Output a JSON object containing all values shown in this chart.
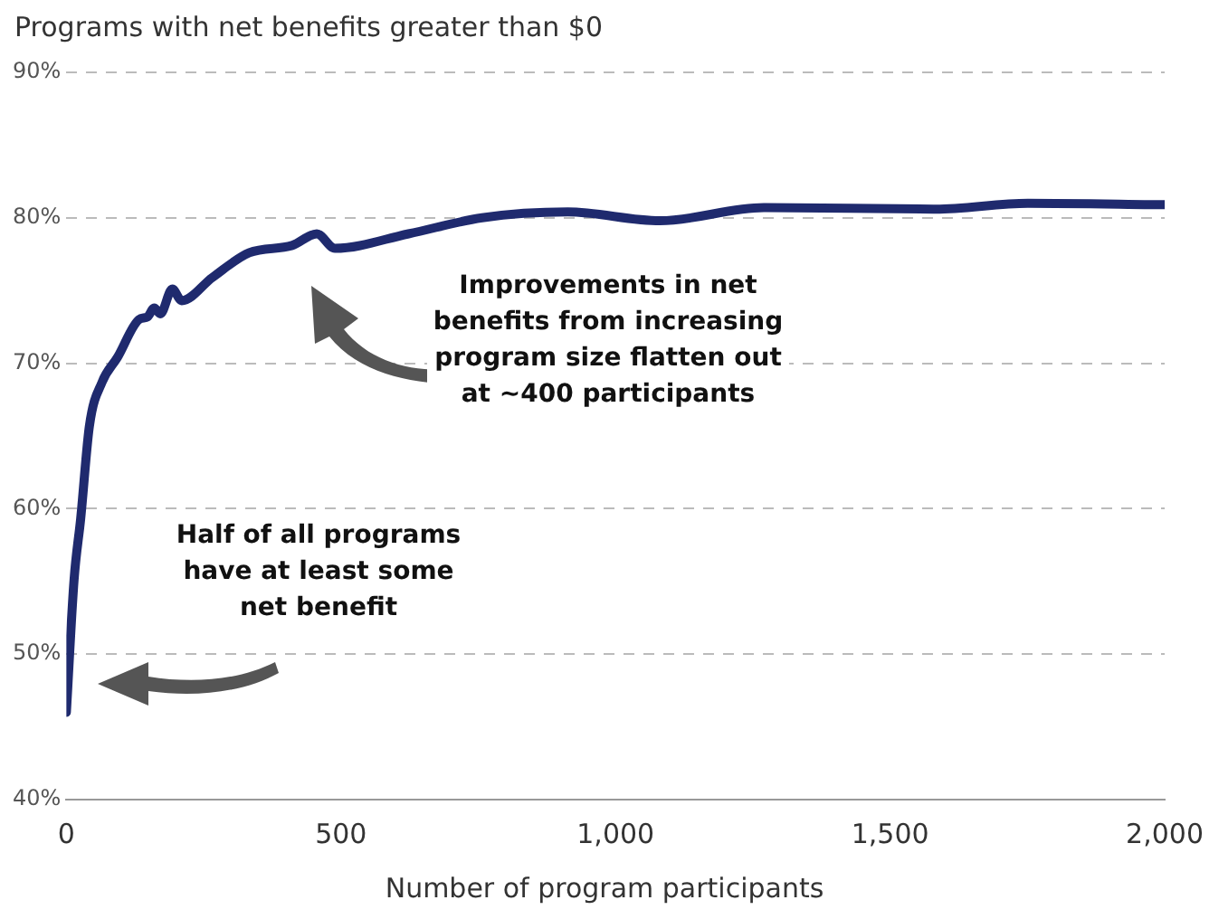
{
  "chart_data": {
    "type": "line",
    "title": "Programs with net benefits greater than $0",
    "xlabel": "Number of program participants",
    "x": [
      0,
      14,
      26,
      42,
      65,
      93,
      132,
      148,
      160,
      171,
      193,
      210,
      266,
      333,
      411,
      456,
      489,
      623,
      757,
      913,
      1081,
      1270,
      1583,
      1751,
      2000
    ],
    "series": [
      {
        "color": "#1f2a6e",
        "values": [
          46,
          55.1,
          59.3,
          65.7,
          68.7,
          70.4,
          73,
          73.2,
          73.8,
          73.4,
          75.1,
          74.3,
          75.9,
          77.6,
          78.1,
          78.9,
          77.9,
          78.9,
          80,
          80.4,
          79.8,
          80.7,
          80.6,
          81,
          80.9
        ]
      }
    ],
    "xlim": [
      0,
      2000
    ],
    "xticks": [
      0,
      500,
      {
        "value": 1000,
        "label": "1,000"
      },
      {
        "value": 1500,
        "label": "1,500"
      },
      {
        "value": 2000,
        "label": "2,000"
      }
    ],
    "ylim": [
      40,
      90
    ],
    "yticks": [
      {
        "value": 40,
        "label": "40%"
      },
      {
        "value": 50,
        "label": "50%"
      },
      {
        "value": 60,
        "label": "60%"
      },
      {
        "value": 70,
        "label": "70%"
      },
      {
        "value": 80,
        "label": "80%"
      },
      {
        "value": 90,
        "label": "90%"
      }
    ],
    "grid": "y",
    "legend": false,
    "marker": "none",
    "line_style": "solid",
    "annotations": [
      "Improvements in net benefits from increasing program size flatten out at ~400 participants",
      "Half of all programs have at least some net benefit"
    ]
  }
}
